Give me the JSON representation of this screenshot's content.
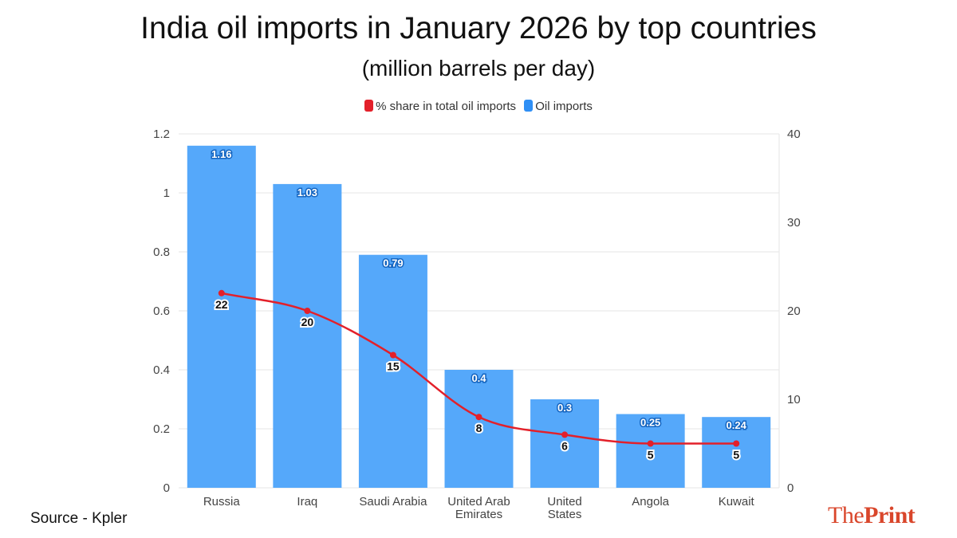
{
  "chart_data": {
    "type": "bar",
    "title": "India oil imports in January 2026 by top countries",
    "subtitle": "(million barrels per day)",
    "categories": [
      "Russia",
      "Iraq",
      "Saudi Arabia",
      "United Arab Emirates",
      "United States",
      "Angola",
      "Kuwait"
    ],
    "series": [
      {
        "name": "Oil imports",
        "type": "bar",
        "axis": "left",
        "color": "#55a8fa",
        "values": [
          1.16,
          1.03,
          0.79,
          0.4,
          0.3,
          0.25,
          0.24
        ]
      },
      {
        "name": "% share in total oil imports",
        "type": "line",
        "axis": "right",
        "color": "#e3202a",
        "values": [
          22,
          20,
          15,
          8,
          6,
          5,
          5
        ]
      }
    ],
    "left_axis": {
      "range": [
        0,
        1.2
      ],
      "ticks": [
        "0",
        "0.2",
        "0.4",
        "0.6",
        "0.8",
        "1",
        "1.2"
      ]
    },
    "right_axis": {
      "range": [
        0,
        40
      ],
      "ticks": [
        "0",
        "10",
        "20",
        "30",
        "40"
      ]
    },
    "grid": true,
    "legend_position": "top"
  },
  "source": "Source - Kpler",
  "logo": {
    "text": "ThePrint",
    "part1": "The",
    "part2": "Print",
    "color": "#d9462b"
  }
}
